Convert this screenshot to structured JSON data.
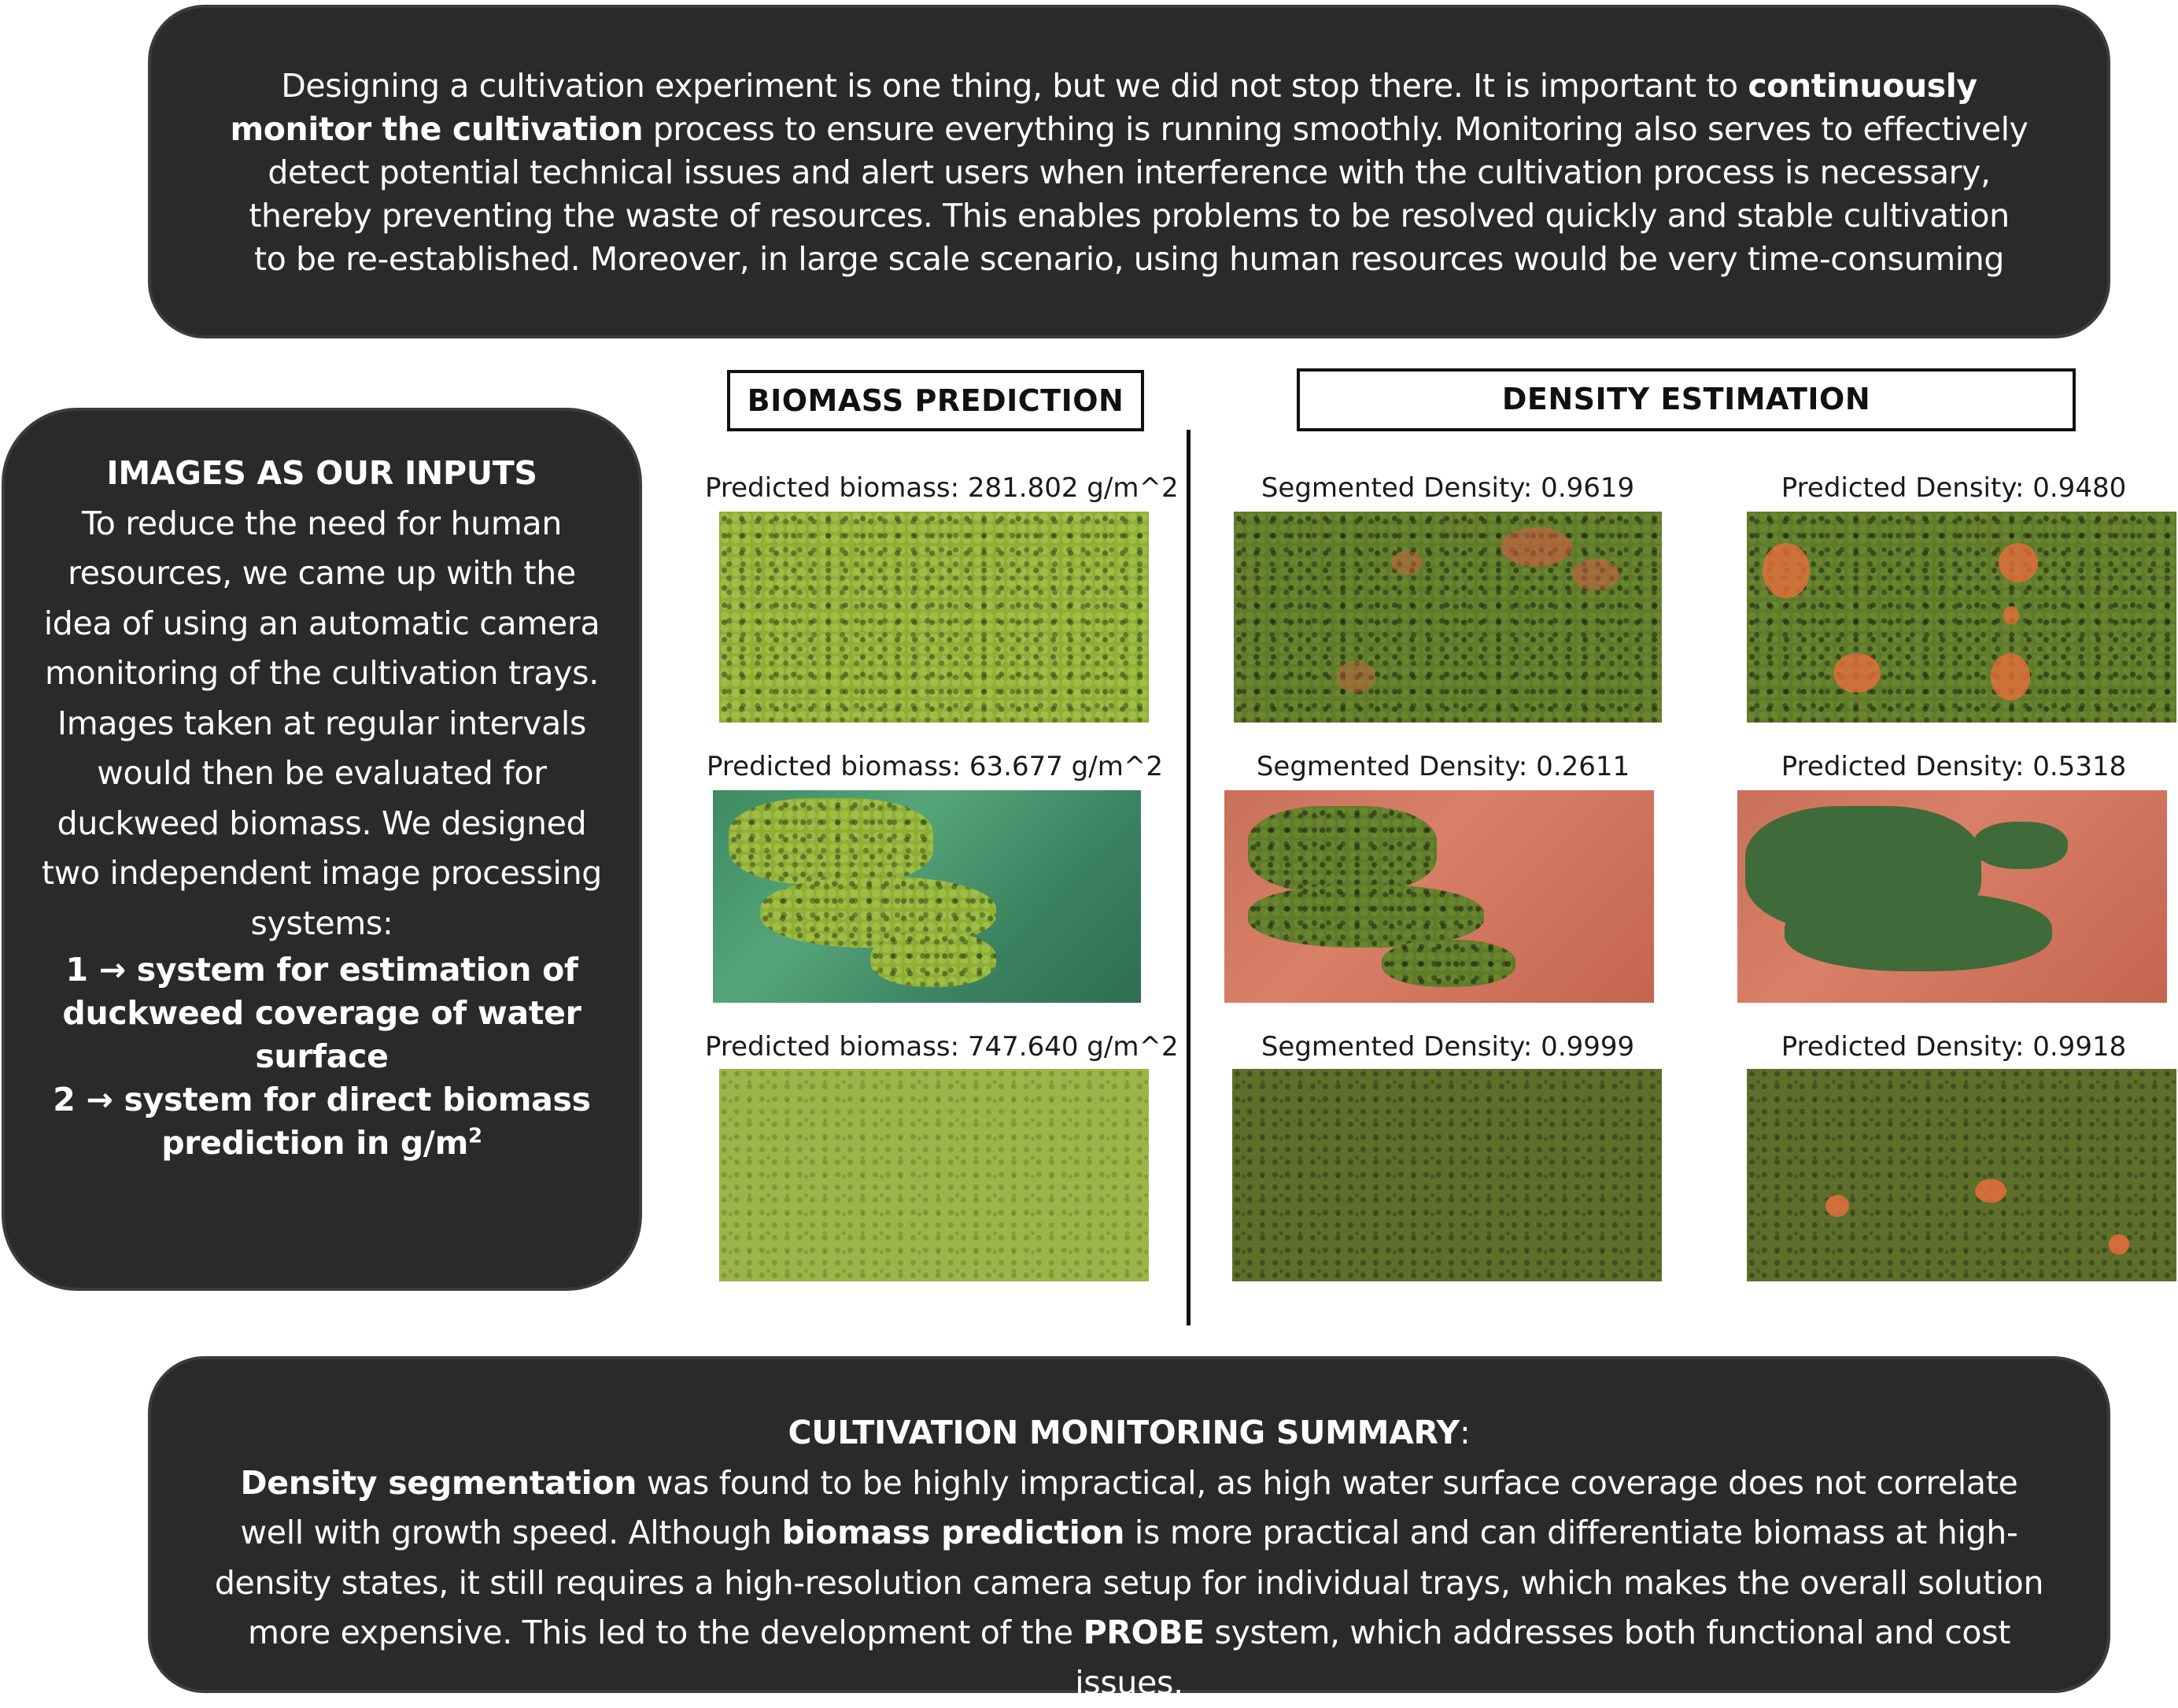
{
  "intro": {
    "part1": "Designing a cultivation experiment is one thing, but we did not stop there. It is important to ",
    "bold1": "continuously monitor the cultivation",
    "part2": " process to ensure everything is running smoothly. Monitoring also serves to effectively detect potential technical issues and alert users when interference with the cultivation process is necessary, thereby preventing the waste of resources. This enables problems to be resolved quickly and stable cultivation to be re-established. Moreover, in large scale scenario, using human resources would be very time-consuming"
  },
  "inputs": {
    "title": "IMAGES AS OUR INPUTS",
    "body": "To reduce the need for human resources, we came up with the idea of using an automatic camera monitoring of the cultivation trays. Images taken at regular intervals would then be evaluated for duckweed biomass. We designed two independent image processing systems:",
    "point1": "1 → system for estimation of duckweed coverage of water surface",
    "point2_text": "2 → system for direct biomass prediction in g/m",
    "point2_sup": "2"
  },
  "sections": {
    "biomass": "BIOMASS PREDICTION",
    "density": "DENSITY ESTIMATION"
  },
  "rows": [
    {
      "biomass": "Predicted biomass: 281.802 g/m^2",
      "segmented": "Segmented Density: 0.9619",
      "predicted": "Predicted Density: 0.9480"
    },
    {
      "biomass": "Predicted biomass: 63.677 g/m^2",
      "segmented": "Segmented Density: 0.2611",
      "predicted": "Predicted Density: 0.5318"
    },
    {
      "biomass": "Predicted biomass: 747.640 g/m^2",
      "segmented": "Segmented Density: 0.9999",
      "predicted": "Predicted Density: 0.9918"
    }
  ],
  "summary": {
    "title": "CULTIVATION MONITORING SUMMARY",
    "colon": ":",
    "bold1": "Density segmentation",
    "part1": " was found to be highly impractical, as high water surface coverage does not correlate well with growth speed. Although ",
    "bold2": "biomass prediction",
    "part2": " is more practical and can differentiate biomass at high-density states, it still requires a high-resolution camera setup for individual trays, which makes the overall solution more expensive. This led to the development of the ",
    "bold3": "PROBE",
    "part3": " system, which addresses both functional and cost issues."
  }
}
